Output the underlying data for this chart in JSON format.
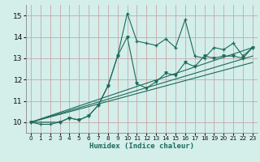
{
  "xlabel": "Humidex (Indice chaleur)",
  "xlim": [
    -0.5,
    23.5
  ],
  "ylim": [
    9.5,
    15.5
  ],
  "xticks": [
    0,
    1,
    2,
    3,
    4,
    5,
    6,
    7,
    8,
    9,
    10,
    11,
    12,
    13,
    14,
    15,
    16,
    17,
    18,
    19,
    20,
    21,
    22,
    23
  ],
  "yticks": [
    10,
    11,
    12,
    13,
    14,
    15
  ],
  "bg_color": "#d4eeea",
  "grid_color": "#c8a8a8",
  "line_color": "#1a6b5a",
  "series1_x": [
    0,
    1,
    2,
    3,
    4,
    5,
    6,
    7,
    8,
    9,
    10,
    11,
    12,
    13,
    14,
    15,
    16,
    17,
    18,
    19,
    20,
    21,
    22,
    23
  ],
  "series1_y": [
    10.0,
    9.9,
    9.9,
    10.0,
    10.2,
    10.1,
    10.3,
    10.8,
    11.7,
    13.1,
    15.1,
    13.8,
    13.7,
    13.6,
    13.9,
    13.5,
    14.8,
    13.1,
    13.0,
    13.5,
    13.4,
    13.7,
    13.1,
    13.5
  ],
  "series2_x": [
    0,
    3,
    4,
    5,
    6,
    7,
    8,
    9,
    10,
    11,
    12,
    13,
    14,
    15,
    16,
    17,
    18,
    19,
    20,
    21,
    22,
    23
  ],
  "series2_y": [
    10.0,
    10.0,
    10.2,
    10.1,
    10.3,
    10.8,
    11.7,
    13.1,
    14.0,
    11.8,
    11.6,
    11.9,
    12.3,
    12.2,
    12.8,
    12.6,
    13.1,
    13.0,
    13.1,
    13.1,
    13.0,
    13.5
  ],
  "trend1_x": [
    0,
    23
  ],
  "trend1_y": [
    10.0,
    13.5
  ],
  "trend2_x": [
    0,
    23
  ],
  "trend2_y": [
    10.0,
    12.8
  ],
  "trend3_x": [
    0,
    23
  ],
  "trend3_y": [
    10.0,
    13.1
  ]
}
